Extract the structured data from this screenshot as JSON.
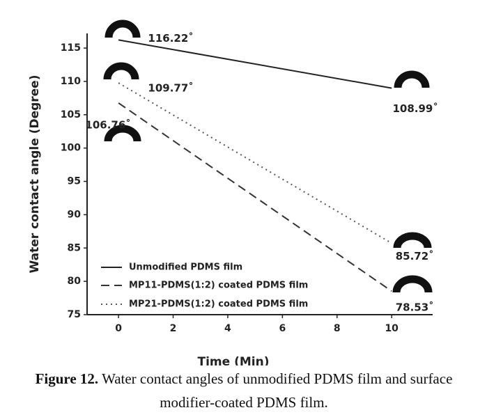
{
  "chart_data": {
    "type": "line",
    "x": [
      0,
      10
    ],
    "series": [
      {
        "name": "Unmodified PDMS film",
        "color": "#222222",
        "linestyle": "solid",
        "values": [
          116.22,
          108.99
        ],
        "value_labels": [
          "116.22˚",
          "108.99˚"
        ]
      },
      {
        "name": "MP11-PDMS(1:2) coated PDMS film",
        "color": "#333333",
        "linestyle": "dashed",
        "values": [
          106.76,
          78.53
        ],
        "value_labels": [
          "106.76˚",
          "78.53˚"
        ]
      },
      {
        "name": "MP21-PDMS(1:2) coated PDMS film",
        "color": "#555555",
        "linestyle": "dotted",
        "values": [
          109.77,
          85.72
        ],
        "value_labels": [
          "109.77˚",
          "85.72˚"
        ]
      }
    ],
    "xlabel": "Time (Min)",
    "ylabel": "Water contact angle (Degree)",
    "xlim": [
      -1.15,
      11.5
    ],
    "xticks": [
      0,
      2,
      4,
      6,
      8,
      10
    ],
    "ylim": [
      75,
      117.2
    ],
    "yticks": [
      75,
      80,
      85,
      90,
      95,
      100,
      105,
      110,
      115
    ],
    "legend": "lower left",
    "grid": false
  },
  "caption": {
    "label": "Figure 12.",
    "text": "Water contact angles of unmodified PDMS film and surface modifier-coated PDMS film."
  }
}
